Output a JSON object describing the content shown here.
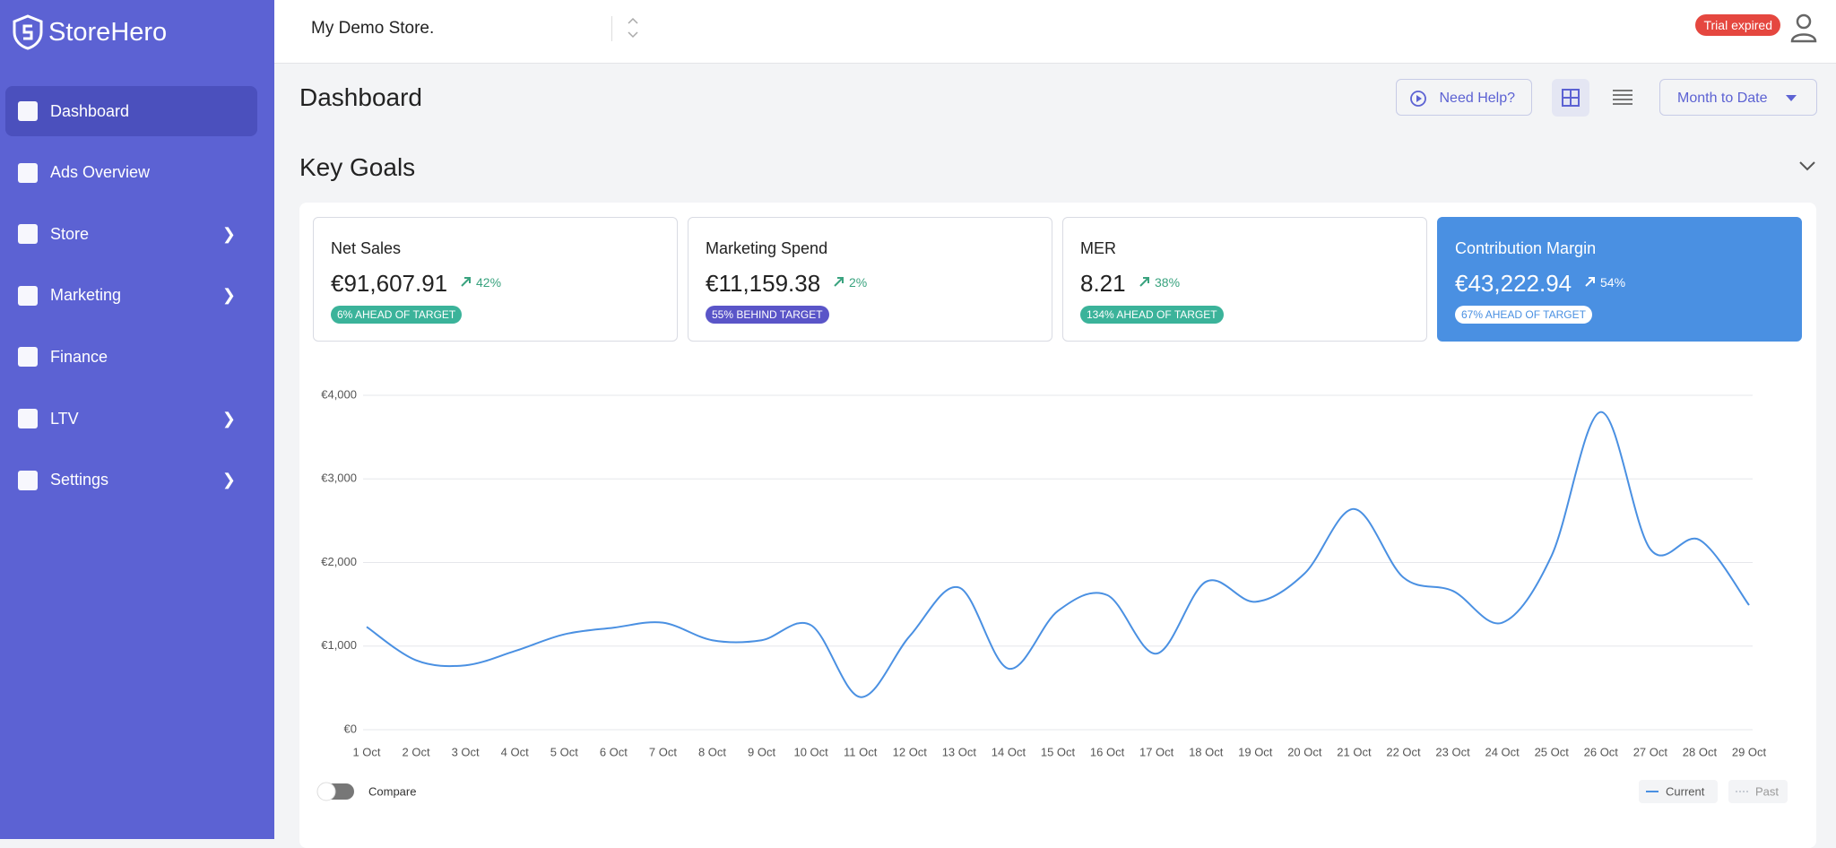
{
  "sidebar": {
    "brand": "StoreHero",
    "nav": [
      {
        "label": "Dashboard",
        "submenu": false
      },
      {
        "label": "Ads Overview",
        "submenu": false
      },
      {
        "label": "Store",
        "submenu": true
      },
      {
        "label": "Marketing",
        "submenu": true
      },
      {
        "label": "Finance",
        "submenu": false
      },
      {
        "label": "LTV",
        "submenu": true
      },
      {
        "label": "Settings",
        "submenu": true
      }
    ]
  },
  "header": {
    "store": "My Demo Store.",
    "badge": "Trial expired"
  },
  "page": {
    "title": "Dashboard",
    "help": "Need Help?",
    "range": "Month to Date"
  },
  "section": {
    "title": "Key Goals"
  },
  "cards": [
    {
      "title": "Net Sales",
      "value": "€91,607.91",
      "change": "42%",
      "target": "6% AHEAD OF TARGET"
    },
    {
      "title": "Marketing Spend",
      "value": "€11,159.38",
      "change": "2%",
      "target": "55% BEHIND TARGET"
    },
    {
      "title": "MER",
      "value": "8.21",
      "change": "38%",
      "target": "134% AHEAD OF TARGET"
    },
    {
      "title": "Contribution Margin",
      "value": "€43,222.94",
      "change": "54%",
      "target": "67% AHEAD OF TARGET"
    }
  ],
  "compare": "Compare",
  "chart_data": {
    "type": "line",
    "categories": [
      "1 Oct",
      "2 Oct",
      "3 Oct",
      "4 Oct",
      "5 Oct",
      "6 Oct",
      "7 Oct",
      "8 Oct",
      "9 Oct",
      "10 Oct",
      "11 Oct",
      "12 Oct",
      "13 Oct",
      "14 Oct",
      "15 Oct",
      "16 Oct",
      "17 Oct",
      "18 Oct",
      "19 Oct",
      "20 Oct",
      "21 Oct",
      "22 Oct",
      "23 Oct",
      "24 Oct",
      "25 Oct",
      "26 Oct",
      "27 Oct",
      "28 Oct",
      "29 Oct"
    ],
    "series": [
      {
        "name": "Current",
        "color": "#4a90e2",
        "values": [
          1230,
          830,
          770,
          940,
          1140,
          1220,
          1280,
          1070,
          1070,
          1250,
          390,
          1120,
          1700,
          730,
          1420,
          1610,
          910,
          1770,
          1530,
          1870,
          2640,
          1820,
          1660,
          1280,
          2080,
          3800,
          2160,
          2270,
          1490
        ]
      },
      {
        "name": "Past",
        "color": "#c8ccd4",
        "values": [
          null,
          null,
          null,
          null,
          null,
          null,
          null,
          null,
          null,
          null,
          null,
          null,
          null,
          null,
          null,
          null,
          null,
          null,
          null,
          null,
          null,
          null,
          null,
          null,
          null,
          null,
          null,
          null,
          null
        ]
      }
    ],
    "ylim": [
      0,
      4000
    ],
    "yticks": [
      {
        "value": 0,
        "label": "€0"
      },
      {
        "value": 1000,
        "label": "€1,000"
      },
      {
        "value": 2000,
        "label": "€2,000"
      },
      {
        "value": 3000,
        "label": "€3,000"
      },
      {
        "value": 4000,
        "label": "€4,000"
      }
    ],
    "grid": true
  }
}
